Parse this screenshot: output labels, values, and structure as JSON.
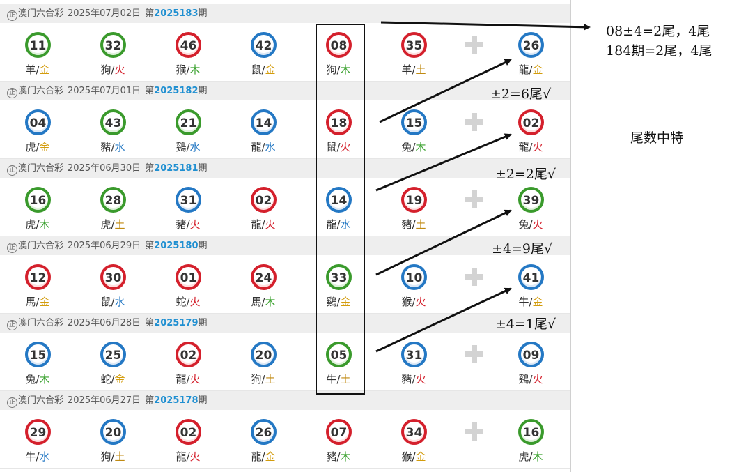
{
  "results": [
    {
      "lottery": "澳门六合彩",
      "date": "2025年07月02日",
      "prefix": "第",
      "issue": "2025183",
      "suffix": "期",
      "balls": [
        {
          "num": "11",
          "color": "green",
          "zodiac": "羊",
          "element": "金",
          "ecolor": "gold"
        },
        {
          "num": "32",
          "color": "green",
          "zodiac": "狗",
          "element": "火",
          "ecolor": "fire"
        },
        {
          "num": "46",
          "color": "red",
          "zodiac": "猴",
          "element": "木",
          "ecolor": "wood"
        },
        {
          "num": "42",
          "color": "blue",
          "zodiac": "鼠",
          "element": "金",
          "ecolor": "gold"
        },
        {
          "num": "08",
          "color": "red",
          "zodiac": "狗",
          "element": "木",
          "ecolor": "wood"
        },
        {
          "num": "35",
          "color": "red",
          "zodiac": "羊",
          "element": "土",
          "ecolor": "earth"
        }
      ],
      "special": {
        "num": "26",
        "color": "blue",
        "zodiac": "龍",
        "element": "金",
        "ecolor": "gold"
      }
    },
    {
      "lottery": "澳门六合彩",
      "date": "2025年07月01日",
      "prefix": "第",
      "issue": "2025182",
      "suffix": "期",
      "balls": [
        {
          "num": "04",
          "color": "blue",
          "zodiac": "虎",
          "element": "金",
          "ecolor": "gold"
        },
        {
          "num": "43",
          "color": "green",
          "zodiac": "豬",
          "element": "水",
          "ecolor": "water"
        },
        {
          "num": "21",
          "color": "green",
          "zodiac": "鷄",
          "element": "水",
          "ecolor": "water"
        },
        {
          "num": "14",
          "color": "blue",
          "zodiac": "龍",
          "element": "水",
          "ecolor": "water"
        },
        {
          "num": "18",
          "color": "red",
          "zodiac": "鼠",
          "element": "火",
          "ecolor": "fire"
        },
        {
          "num": "15",
          "color": "blue",
          "zodiac": "兔",
          "element": "木",
          "ecolor": "wood"
        }
      ],
      "special": {
        "num": "02",
        "color": "red",
        "zodiac": "龍",
        "element": "火",
        "ecolor": "fire"
      }
    },
    {
      "lottery": "澳门六合彩",
      "date": "2025年06月30日",
      "prefix": "第",
      "issue": "2025181",
      "suffix": "期",
      "balls": [
        {
          "num": "16",
          "color": "green",
          "zodiac": "虎",
          "element": "木",
          "ecolor": "wood"
        },
        {
          "num": "28",
          "color": "green",
          "zodiac": "虎",
          "element": "土",
          "ecolor": "earth"
        },
        {
          "num": "31",
          "color": "blue",
          "zodiac": "豬",
          "element": "火",
          "ecolor": "fire"
        },
        {
          "num": "02",
          "color": "red",
          "zodiac": "龍",
          "element": "火",
          "ecolor": "fire"
        },
        {
          "num": "14",
          "color": "blue",
          "zodiac": "龍",
          "element": "水",
          "ecolor": "water"
        },
        {
          "num": "19",
          "color": "red",
          "zodiac": "豬",
          "element": "土",
          "ecolor": "earth"
        }
      ],
      "special": {
        "num": "39",
        "color": "green",
        "zodiac": "兔",
        "element": "火",
        "ecolor": "fire"
      }
    },
    {
      "lottery": "澳门六合彩",
      "date": "2025年06月29日",
      "prefix": "第",
      "issue": "2025180",
      "suffix": "期",
      "balls": [
        {
          "num": "12",
          "color": "red",
          "zodiac": "馬",
          "element": "金",
          "ecolor": "gold"
        },
        {
          "num": "30",
          "color": "red",
          "zodiac": "鼠",
          "element": "水",
          "ecolor": "water"
        },
        {
          "num": "01",
          "color": "red",
          "zodiac": "蛇",
          "element": "火",
          "ecolor": "fire"
        },
        {
          "num": "24",
          "color": "red",
          "zodiac": "馬",
          "element": "木",
          "ecolor": "wood"
        },
        {
          "num": "33",
          "color": "green",
          "zodiac": "鷄",
          "element": "金",
          "ecolor": "gold"
        },
        {
          "num": "10",
          "color": "blue",
          "zodiac": "猴",
          "element": "火",
          "ecolor": "fire"
        }
      ],
      "special": {
        "num": "41",
        "color": "blue",
        "zodiac": "牛",
        "element": "金",
        "ecolor": "gold"
      }
    },
    {
      "lottery": "澳门六合彩",
      "date": "2025年06月28日",
      "prefix": "第",
      "issue": "2025179",
      "suffix": "期",
      "balls": [
        {
          "num": "15",
          "color": "blue",
          "zodiac": "兔",
          "element": "木",
          "ecolor": "wood"
        },
        {
          "num": "25",
          "color": "blue",
          "zodiac": "蛇",
          "element": "金",
          "ecolor": "gold"
        },
        {
          "num": "02",
          "color": "red",
          "zodiac": "龍",
          "element": "火",
          "ecolor": "fire"
        },
        {
          "num": "20",
          "color": "blue",
          "zodiac": "狗",
          "element": "土",
          "ecolor": "earth"
        },
        {
          "num": "05",
          "color": "green",
          "zodiac": "牛",
          "element": "土",
          "ecolor": "earth"
        },
        {
          "num": "31",
          "color": "blue",
          "zodiac": "豬",
          "element": "火",
          "ecolor": "fire"
        }
      ],
      "special": {
        "num": "09",
        "color": "blue",
        "zodiac": "鷄",
        "element": "火",
        "ecolor": "fire"
      }
    },
    {
      "lottery": "澳门六合彩",
      "date": "2025年06月27日",
      "prefix": "第",
      "issue": "2025178",
      "suffix": "期",
      "balls": [
        {
          "num": "29",
          "color": "red",
          "zodiac": "牛",
          "element": "水",
          "ecolor": "water"
        },
        {
          "num": "20",
          "color": "blue",
          "zodiac": "狗",
          "element": "土",
          "ecolor": "earth"
        },
        {
          "num": "02",
          "color": "red",
          "zodiac": "龍",
          "element": "火",
          "ecolor": "fire"
        },
        {
          "num": "26",
          "color": "blue",
          "zodiac": "龍",
          "element": "金",
          "ecolor": "gold"
        },
        {
          "num": "07",
          "color": "red",
          "zodiac": "豬",
          "element": "木",
          "ecolor": "wood"
        },
        {
          "num": "34",
          "color": "red",
          "zodiac": "猴",
          "element": "金",
          "ecolor": "gold"
        }
      ],
      "special": {
        "num": "16",
        "color": "green",
        "zodiac": "虎",
        "element": "木",
        "ecolor": "wood"
      }
    }
  ],
  "notes": {
    "top_line1": "08±4=2尾，4尾",
    "top_line2": "184期=2尾，4尾",
    "n1": "±2=6尾√",
    "n2": "±2=2尾√",
    "n3": "±4=9尾√",
    "n4": "±4=1尾√",
    "side": "尾数中特"
  },
  "logo_text": "正",
  "separator": "/",
  "colors": {
    "red": "#d4202c",
    "blue": "#2478c4",
    "green": "#3a9a2c",
    "issue": "#1f8fd1",
    "header_bg": "#eeeeee"
  }
}
